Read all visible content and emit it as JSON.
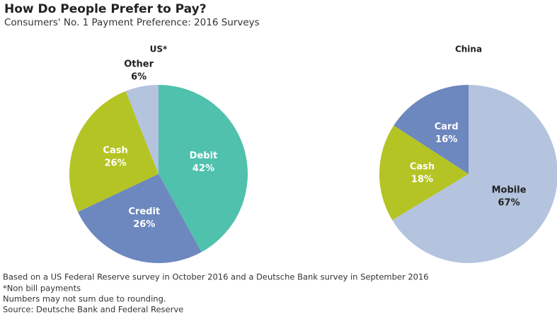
{
  "title": "How Do People Prefer to Pay?",
  "subtitle": "Consumers' No. 1 Payment Preference: 2016 Surveys",
  "chart_data": [
    {
      "type": "pie",
      "title": "US*",
      "categories": [
        "Debit",
        "Credit",
        "Cash",
        "Other"
      ],
      "values": [
        42,
        26,
        26,
        6
      ],
      "value_labels": [
        "42%",
        "26%",
        "26%",
        "6%"
      ],
      "colors": [
        "#4fc1ad",
        "#6d87bf",
        "#b4c424",
        "#b4c3de"
      ]
    },
    {
      "type": "pie",
      "title": "China",
      "categories": [
        "Mobile",
        "Cash",
        "Card"
      ],
      "values": [
        67,
        18,
        16
      ],
      "value_labels": [
        "67%",
        "18%",
        "16%"
      ],
      "colors": [
        "#b4c3de",
        "#b4c424",
        "#6d87bf"
      ]
    }
  ],
  "notes": [
    "Based on a US Federal Reserve survey in October 2016 and a Deutsche Bank survey in September 2016",
    "*Non bill payments",
    "Numbers may not sum due to rounding.",
    "Source: Deutsche Bank and Federal Reserve"
  ]
}
